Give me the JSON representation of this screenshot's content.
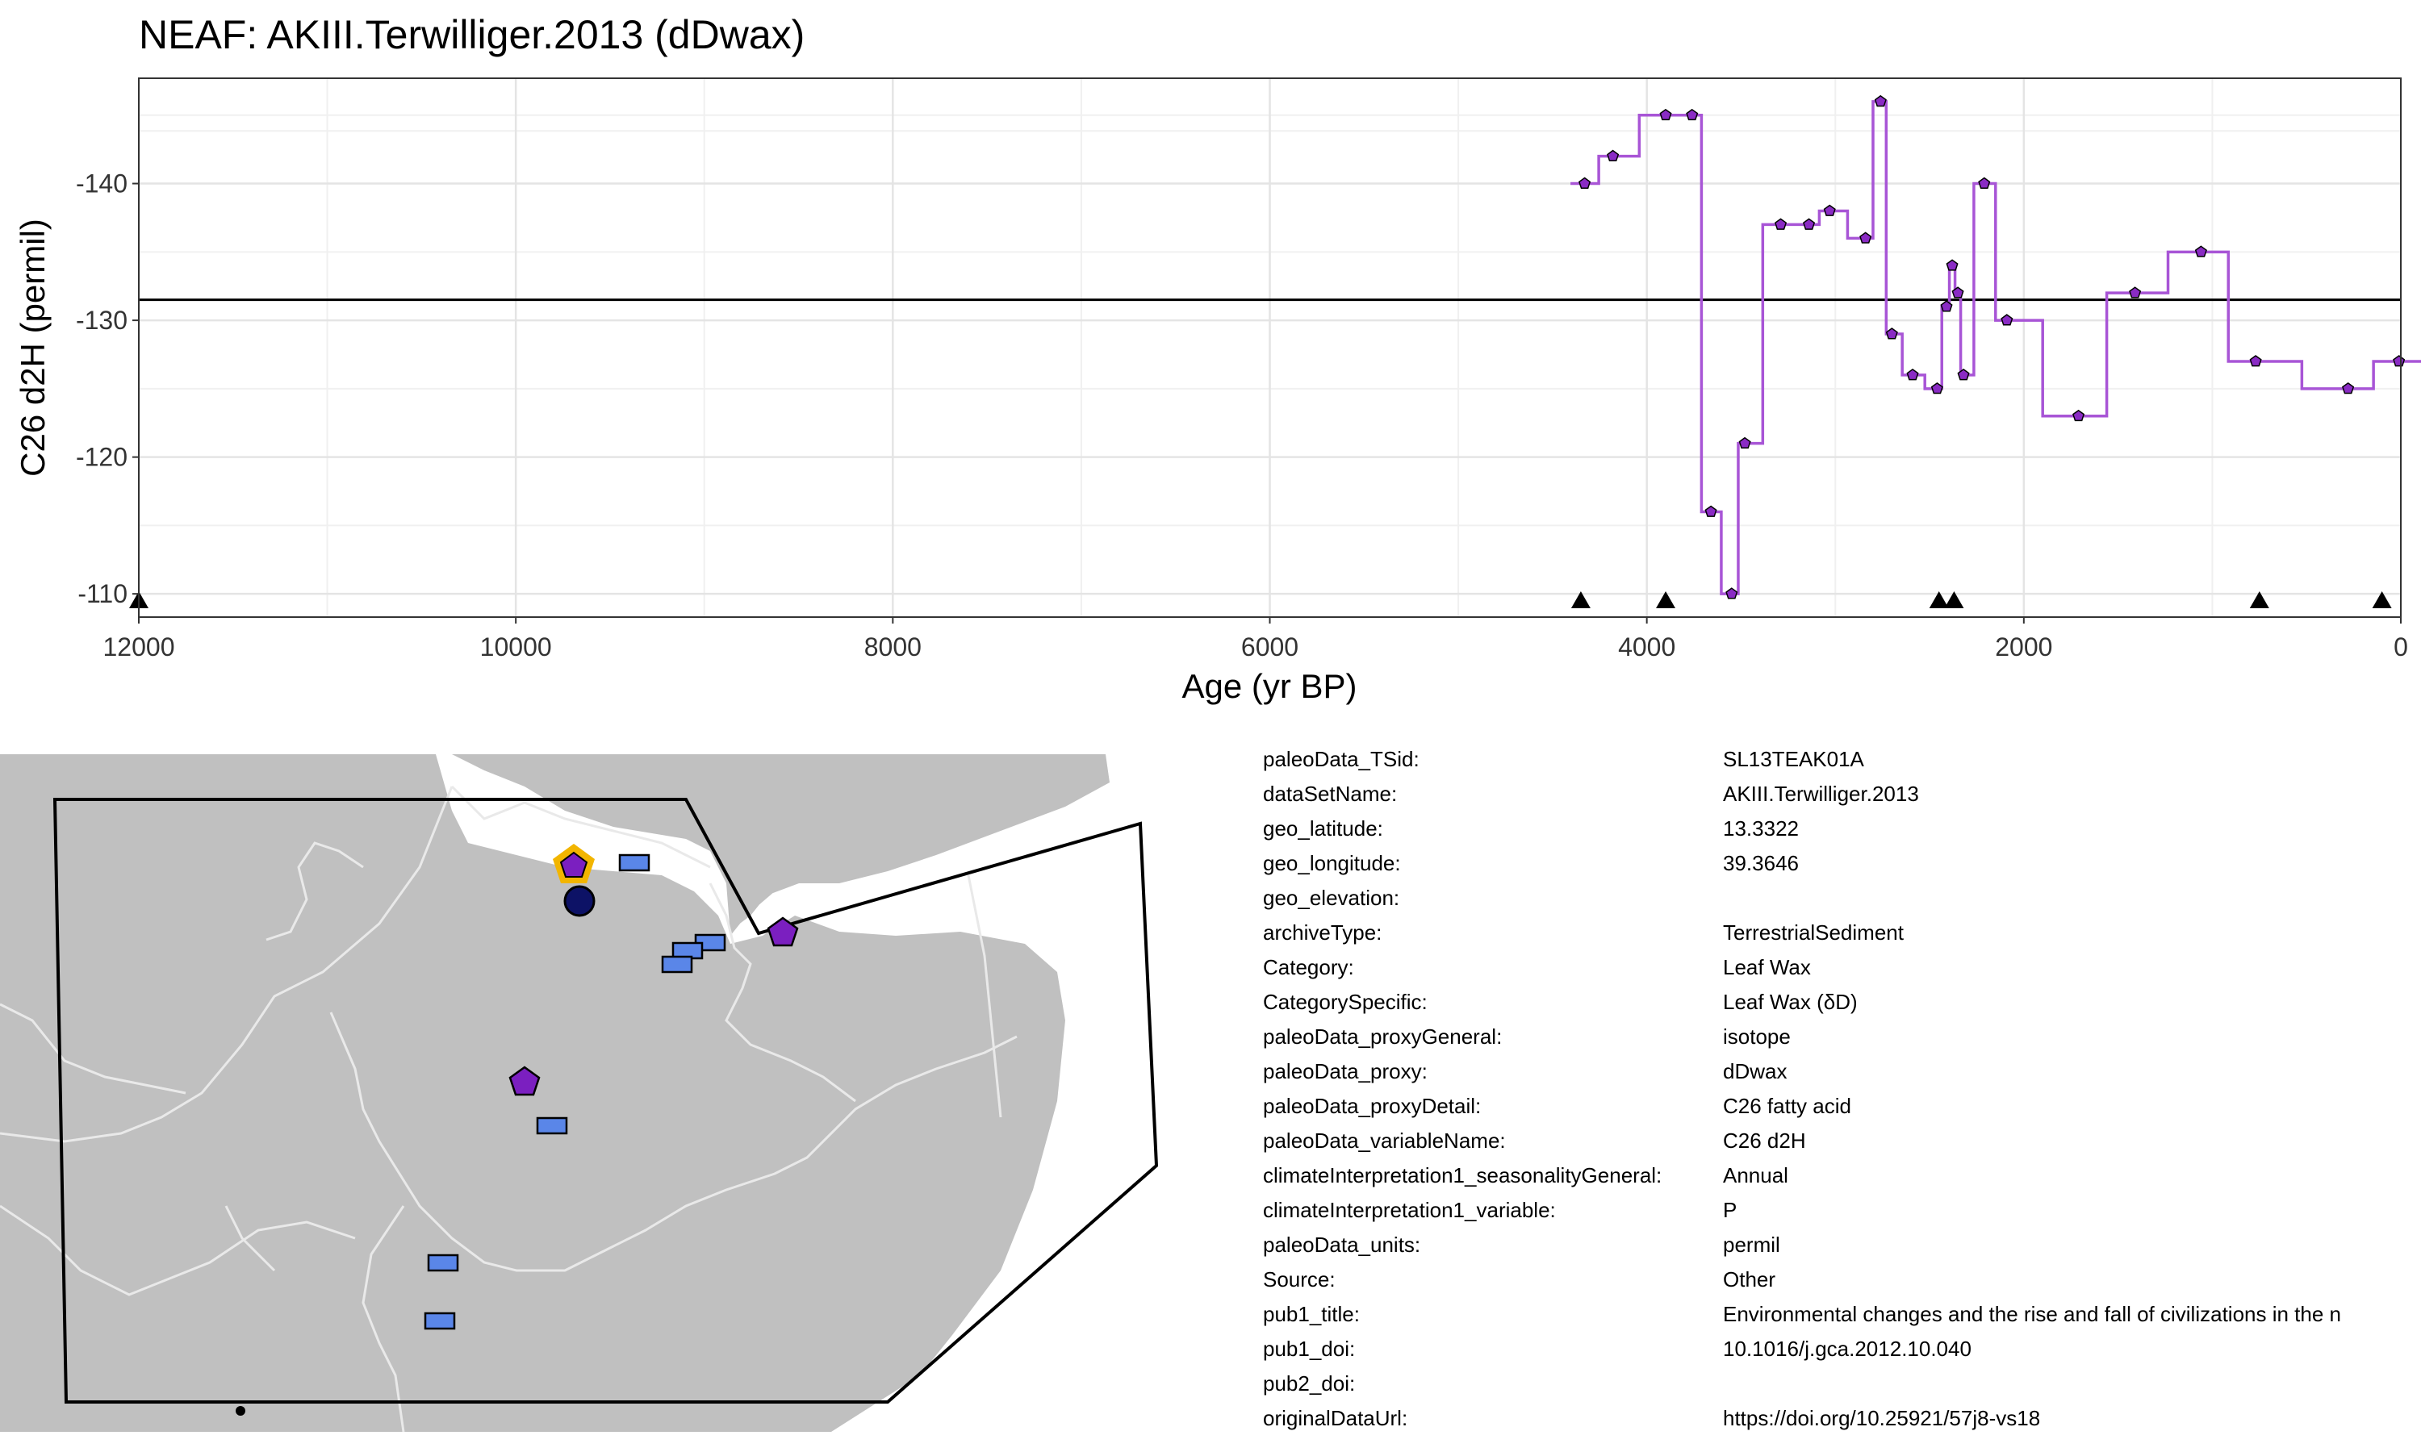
{
  "chart_data": {
    "type": "line",
    "title": "NEAF: AKIII.Terwilliger.2013 (dDwax)",
    "xlabel": "Age (yr BP)",
    "ylabel": "C26 d2H (permil)",
    "xlim": [
      12000,
      0
    ],
    "ylim": [
      -108.3,
      -147.7
    ],
    "x_ticks": [
      12000,
      10000,
      8000,
      6000,
      4000,
      2000,
      0
    ],
    "x_tick_labels": [
      "12000",
      "10000",
      "8000",
      "6000",
      "4000",
      "2000",
      "0"
    ],
    "y_ticks": [
      -140,
      -130,
      -120,
      -110
    ],
    "y_tick_labels": [
      "-140",
      "-130",
      "-120",
      "-110"
    ],
    "grid": true,
    "reference_line": -131.5,
    "series": [
      {
        "color": "#a855d6",
        "x": [
          4330,
          4180,
          3900,
          3760,
          3660,
          3550,
          3480,
          3290,
          3140,
          3030,
          2840,
          2760,
          2700,
          2590,
          2460,
          2410,
          2380,
          2350,
          2320,
          2210,
          2090,
          1710,
          1410,
          1060,
          770,
          280,
          10
        ],
        "y": [
          -140,
          -142,
          -145,
          -145,
          -116,
          -110,
          -121,
          -137,
          -137,
          -138,
          -136,
          -146,
          -129,
          -126,
          -125,
          -131,
          -134,
          -132,
          -126,
          -140,
          -130,
          -123,
          -132,
          -135,
          -127,
          -125,
          -127
        ]
      }
    ],
    "chron_markers": [
      12000,
      4350,
      3900,
      2450,
      2370,
      750,
      100
    ]
  },
  "map": {
    "colors": {
      "land": "#c0c0c0",
      "border": "#e9e9e9",
      "selected_site": "#7b1fc0",
      "highlight": "#f2b500",
      "circle": "#0d1266",
      "rect_sites": "#5a86e8"
    }
  },
  "metadata": [
    {
      "key": "paleoData_TSid:",
      "value": "SL13TEAK01A"
    },
    {
      "key": "dataSetName:",
      "value": "AKIII.Terwilliger.2013"
    },
    {
      "key": "geo_latitude:",
      "value": "13.3322"
    },
    {
      "key": "geo_longitude:",
      "value": "39.3646"
    },
    {
      "key": "geo_elevation:",
      "value": ""
    },
    {
      "key": "archiveType:",
      "value": "TerrestrialSediment"
    },
    {
      "key": "Category:",
      "value": "Leaf Wax"
    },
    {
      "key": "CategorySpecific:",
      "value": "Leaf Wax (δD)"
    },
    {
      "key": "paleoData_proxyGeneral:",
      "value": "isotope"
    },
    {
      "key": "paleoData_proxy:",
      "value": "dDwax"
    },
    {
      "key": "paleoData_proxyDetail:",
      "value": "C26 fatty acid"
    },
    {
      "key": "paleoData_variableName:",
      "value": "C26 d2H"
    },
    {
      "key": "climateInterpretation1_seasonalityGeneral:",
      "value": "Annual"
    },
    {
      "key": "climateInterpretation1_variable:",
      "value": "P"
    },
    {
      "key": "paleoData_units:",
      "value": "permil"
    },
    {
      "key": "Source:",
      "value": "Other"
    },
    {
      "key": "pub1_title:",
      "value": "Environmental changes and the rise and fall of civilizations in the n"
    },
    {
      "key": "pub1_doi:",
      "value": "10.1016/j.gca.2012.10.040"
    },
    {
      "key": "pub2_doi:",
      "value": ""
    },
    {
      "key": "originalDataUrl:",
      "value": "https://doi.org/10.25921/57j8-vs18"
    }
  ]
}
